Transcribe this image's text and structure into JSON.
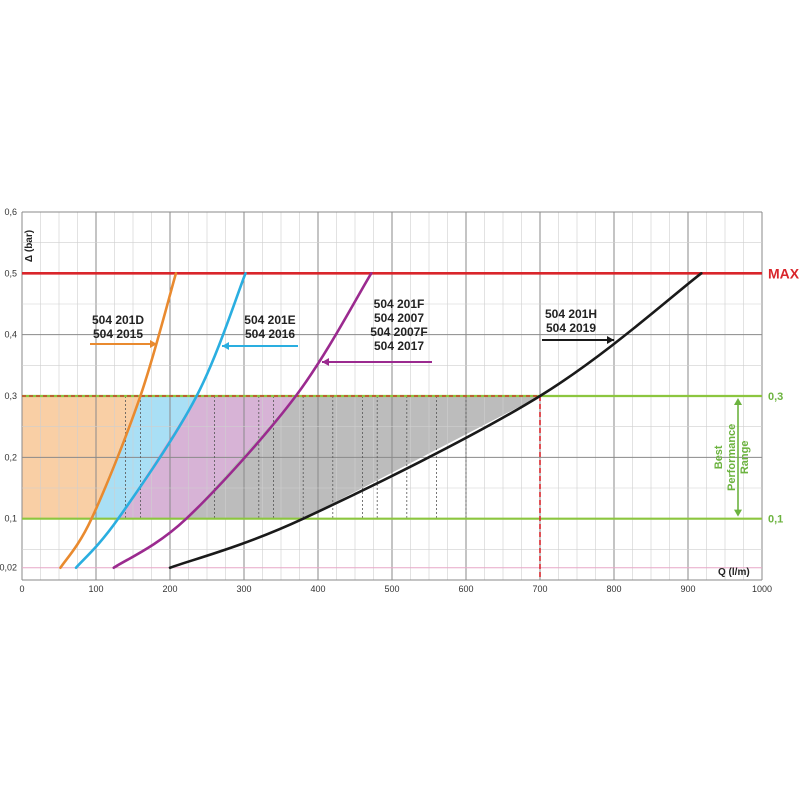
{
  "chart_data": {
    "type": "line",
    "xlabel": "Q (l/m)",
    "ylabel": "Δ (bar)",
    "xlim": [
      0,
      1000
    ],
    "ylim": [
      0,
      0.6
    ],
    "x_ticks": [
      0,
      100,
      200,
      300,
      400,
      500,
      600,
      700,
      800,
      900,
      1000
    ],
    "y_ticks": [
      {
        "value": 0.02,
        "label": "0,02"
      },
      {
        "value": 0.1,
        "label": "0,1"
      },
      {
        "value": 0.2,
        "label": "0,2"
      },
      {
        "value": 0.3,
        "label": "0,3"
      },
      {
        "value": 0.4,
        "label": "0,4"
      },
      {
        "value": 0.5,
        "label": "0,5"
      },
      {
        "value": 0.6,
        "label": "0,6"
      }
    ],
    "grid": true,
    "series": [
      {
        "name": "504 201D / 504 2015",
        "labels": [
          "504 201D",
          "504 2015"
        ],
        "color": "#e98a2f",
        "fill": "#f9cfa5",
        "points": [
          [
            52,
            0.02
          ],
          [
            94,
            0.1
          ],
          [
            160,
            0.3
          ],
          [
            208,
            0.5
          ]
        ]
      },
      {
        "name": "504 201E / 504 2016",
        "labels": [
          "504 201E",
          "504 2016"
        ],
        "color": "#2aaee0",
        "fill": "#a9dff5",
        "points": [
          [
            73,
            0.02
          ],
          [
            130,
            0.1
          ],
          [
            236,
            0.3
          ],
          [
            302,
            0.5
          ]
        ]
      },
      {
        "name": "504 201F / 504 2007 / 504 2007F / 504 2017",
        "labels": [
          "504 201F",
          "504 2007",
          "504 2007F",
          "504 2017"
        ],
        "color": "#9b2a8f",
        "fill": "#d7b3d6",
        "points": [
          [
            124,
            0.02
          ],
          [
            222,
            0.1
          ],
          [
            370,
            0.3
          ],
          [
            472,
            0.5
          ]
        ]
      },
      {
        "name": "504 201H / 504 2019",
        "labels": [
          "504 201H",
          "504 2019"
        ],
        "color": "#1a1a1a",
        "fill": "#bcbcbc",
        "points": [
          [
            200,
            0.02
          ],
          [
            380,
            0.1
          ],
          [
            700,
            0.3
          ],
          [
            918,
            0.5
          ]
        ]
      }
    ],
    "reference_lines": [
      {
        "y": 0.5,
        "label": "MAX",
        "color": "#d9252b"
      },
      {
        "y": 0.3,
        "label": "0,3",
        "color": "#8cc63f"
      },
      {
        "y": 0.1,
        "label": "0,1",
        "color": "#8cc63f"
      }
    ],
    "marker": {
      "x": 700,
      "y": 0.3,
      "color": "#d9252b",
      "style": "dashed"
    },
    "range_annotation": {
      "lines": [
        "Best",
        "Performance",
        "Range"
      ],
      "from": 0.1,
      "to": 0.3,
      "color": "#6cb33f"
    }
  }
}
